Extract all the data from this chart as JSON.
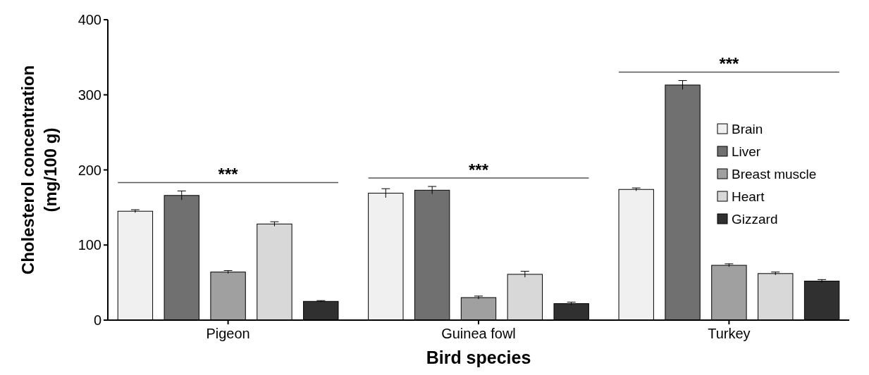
{
  "chart_data": {
    "type": "bar",
    "xlabel": "Bird species",
    "ylabel": "Cholesterol concentration\n(mg/100 g)",
    "categories": [
      "Pigeon",
      "Guinea fowl",
      "Turkey"
    ],
    "series": [
      {
        "name": "Brain",
        "color": "#f0f0f0",
        "values": [
          145,
          169,
          174
        ],
        "errors": [
          2,
          6,
          2
        ]
      },
      {
        "name": "Liver",
        "color": "#707070",
        "values": [
          166,
          173,
          313
        ],
        "errors": [
          6,
          5,
          6
        ]
      },
      {
        "name": "Breast muscle",
        "color": "#a0a0a0",
        "values": [
          64,
          30,
          73
        ],
        "errors": [
          2,
          2,
          2
        ]
      },
      {
        "name": "Heart",
        "color": "#d8d8d8",
        "values": [
          128,
          61,
          62
        ],
        "errors": [
          3,
          4,
          2
        ]
      },
      {
        "name": "Gizzard",
        "color": "#303030",
        "values": [
          25,
          22,
          52
        ],
        "errors": [
          1,
          2,
          2
        ]
      }
    ],
    "ylim": [
      0,
      400
    ],
    "yticks": [
      0,
      100,
      200,
      300,
      400
    ],
    "grid": false,
    "legend": "right",
    "annotations": [
      "***",
      "***",
      "***"
    ]
  }
}
